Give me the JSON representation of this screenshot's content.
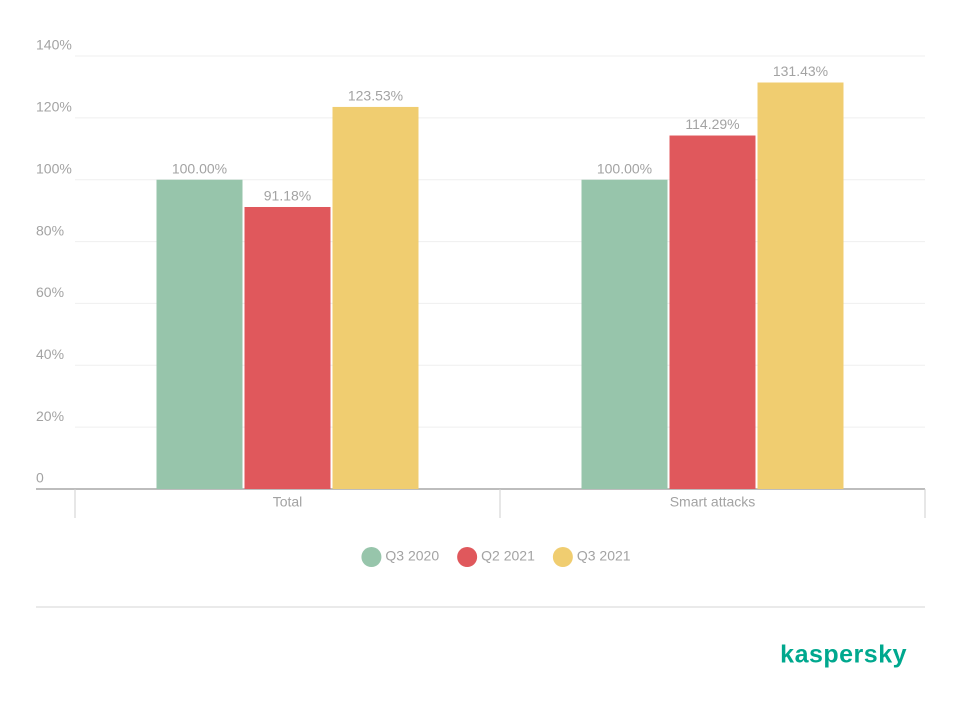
{
  "chart_data": {
    "type": "bar",
    "categories": [
      "Total",
      "Smart attacks"
    ],
    "series": [
      {
        "name": "Q3 2020",
        "color": "#97c5ab",
        "values": [
          100,
          100
        ],
        "value_labels": [
          "100.00%",
          "100.00%"
        ]
      },
      {
        "name": "Q2 2021",
        "color": "#e0585c",
        "values": [
          91.18,
          114.29
        ],
        "value_labels": [
          "91.18%",
          "114.29%"
        ]
      },
      {
        "name": "Q3 2021",
        "color": "#f0cd70",
        "values": [
          123.53,
          131.43
        ],
        "value_labels": [
          "123.53%",
          "131.43%"
        ]
      }
    ],
    "ylim": [
      0,
      140
    ],
    "yticks": [
      0,
      {
        "value": 20,
        "label": "20%"
      },
      {
        "value": 40,
        "label": "40%"
      },
      {
        "value": 60,
        "label": "60%"
      },
      {
        "value": 80,
        "label": "80%"
      },
      {
        "value": 100,
        "label": "100%"
      },
      {
        "value": 120,
        "label": "120%"
      },
      {
        "value": 140,
        "label": "140%"
      }
    ],
    "grid": true
  },
  "logo": "kaspersky"
}
